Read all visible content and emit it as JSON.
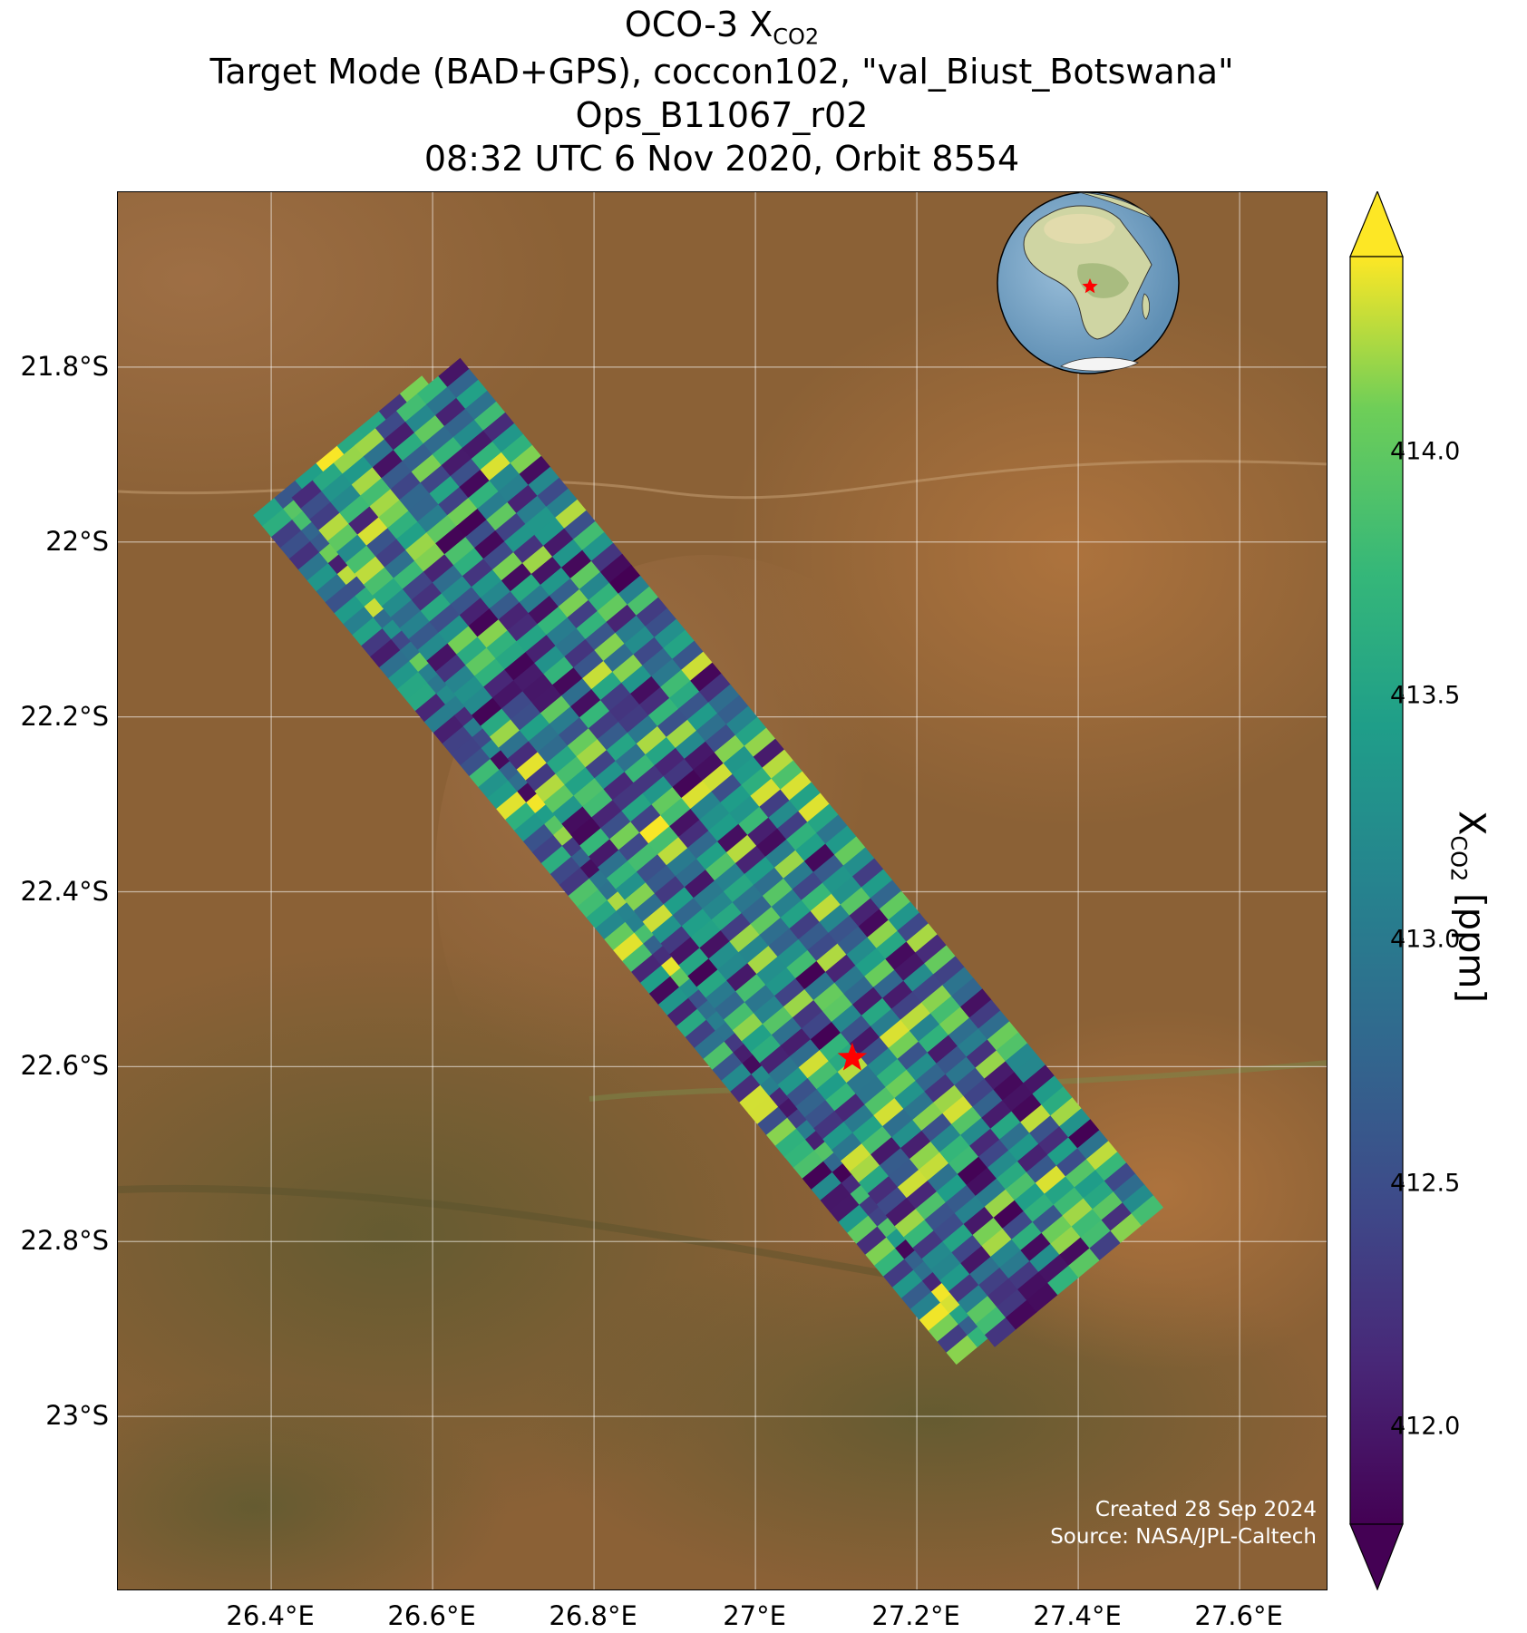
{
  "title": {
    "line1_prefix": "OCO-3 X",
    "line1_sub": "CO2",
    "line2": "Target Mode (BAD+GPS), coccon102, \"val_Biust_Botswana\"",
    "line3": "Ops_B11067_r02",
    "line4": "08:32 UTC 6 Nov 2020, Orbit 8554"
  },
  "map": {
    "lon_range": [
      26.21,
      27.71
    ],
    "lat_range": [
      -23.2,
      -21.6
    ],
    "lon_ticks": [
      26.4,
      26.6,
      26.8,
      27.0,
      27.2,
      27.4,
      27.6
    ],
    "lon_tick_labels": [
      "26.4°E",
      "26.6°E",
      "26.8°E",
      "27°E",
      "27.2°E",
      "27.4°E",
      "27.6°E"
    ],
    "lat_ticks": [
      -21.8,
      -22.0,
      -22.2,
      -22.4,
      -22.6,
      -22.8,
      -23.0
    ],
    "lat_tick_labels": [
      "21.8°S",
      "22°S",
      "22.2°S",
      "22.4°S",
      "22.6°S",
      "22.8°S",
      "23°S"
    ],
    "grid": true,
    "background": "satellite imagery, semi-arid brown/green terrain",
    "target_marker": {
      "lon": 27.12,
      "lat": -22.59,
      "color": "#ff0000",
      "shape": "star"
    },
    "swath": {
      "start": {
        "lon": 26.51,
        "lat": -21.88
      },
      "end": {
        "lon": 27.38,
        "lat": -22.85
      },
      "value_range_ppm": [
        411.8,
        414.2
      ]
    }
  },
  "inset_globe": {
    "description_color_ocean": "#7fa6c8",
    "marker_color": "#ff0000"
  },
  "colorbar": {
    "cmap": "viridis",
    "min": 411.8,
    "max": 414.4,
    "ticks": [
      412.0,
      412.5,
      413.0,
      413.5,
      414.0
    ],
    "tick_labels": [
      "412.0",
      "412.5",
      "413.0",
      "413.5",
      "414.0"
    ],
    "label_prefix": "X",
    "label_sub": "CO2",
    "label_suffix": " [ppm]",
    "extend": "both"
  },
  "credits": {
    "line1": "Created 28 Sep 2024",
    "line2": "Source: NASA/JPL-Caltech"
  }
}
